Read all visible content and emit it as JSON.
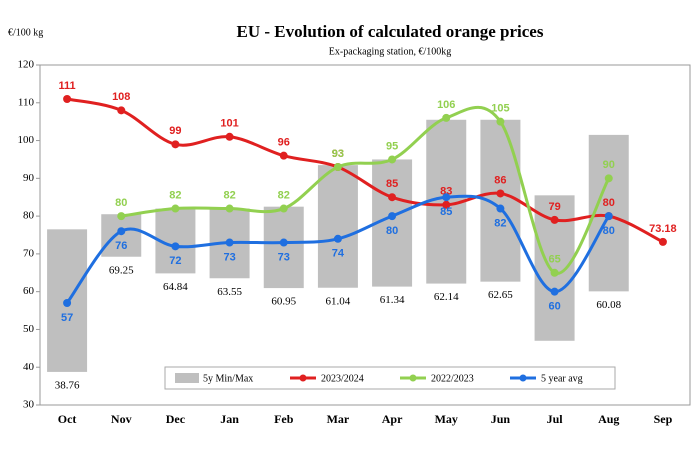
{
  "chart_data": {
    "type": "line",
    "title": "EU  -  Evolution of calculated orange prices",
    "subtitle": "Ex-packaging station, €/100kg",
    "y_label": "€/100 kg",
    "categories": [
      "Oct",
      "Nov",
      "Dec",
      "Jan",
      "Feb",
      "Mar",
      "Apr",
      "May",
      "Jun",
      "Jul",
      "Aug",
      "Sep"
    ],
    "ylim": [
      30,
      120
    ],
    "yticks": [
      30,
      40,
      50,
      60,
      70,
      80,
      90,
      100,
      110,
      120
    ],
    "range_bars": {
      "name": "5y Min/Max",
      "color": "#bfbfbf",
      "low": [
        38.76,
        69.25,
        64.84,
        63.55,
        60.95,
        61.04,
        61.34,
        62.14,
        62.65,
        47,
        60.08,
        null
      ],
      "high": [
        76.5,
        80.5,
        82,
        82,
        82.5,
        93.5,
        95,
        105.5,
        105.5,
        85.5,
        101.5,
        null
      ],
      "value_labels": [
        "38.76",
        "69.25",
        "64.84",
        "63.55",
        "60.95",
        "61.04",
        "61.34",
        "62.14",
        "62.65",
        null,
        "60.08",
        null
      ]
    },
    "series": [
      {
        "name": "2023/2024",
        "color": "#e02020",
        "label_pos": "above",
        "values": [
          111,
          108,
          99,
          101,
          96,
          93,
          85,
          83,
          86,
          79,
          80,
          73.18
        ]
      },
      {
        "name": "2022/2023",
        "color": "#92d050",
        "label_pos": "above",
        "values": [
          null,
          80,
          82,
          82,
          82,
          93,
          95,
          106,
          105,
          65,
          90,
          null
        ]
      },
      {
        "name": "5 year avg",
        "color": "#1f6fe0",
        "label_pos": "below",
        "values": [
          57,
          76,
          72,
          73,
          73,
          74,
          80,
          85,
          82,
          60,
          80,
          null
        ]
      }
    ]
  }
}
